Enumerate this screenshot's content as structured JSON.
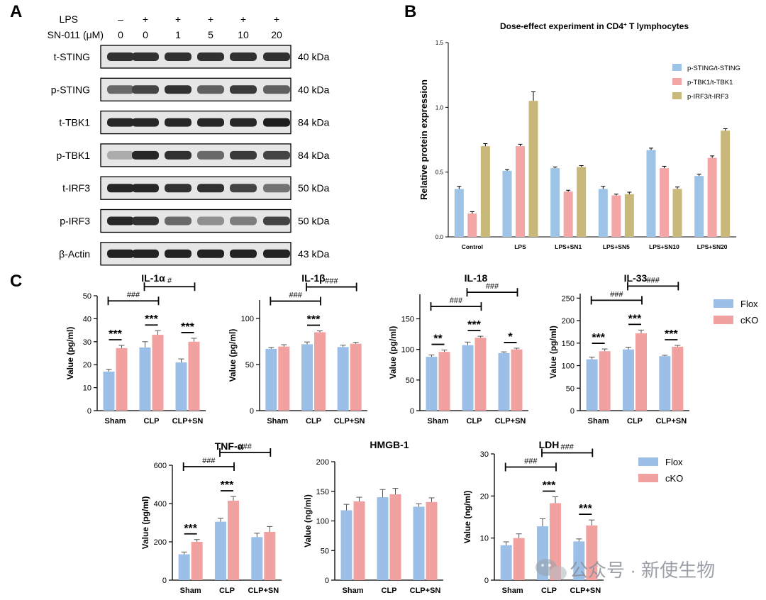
{
  "panel_letters": [
    "A",
    "B",
    "C"
  ],
  "colors": {
    "flox": "#9bbfe6",
    "cko": "#f2a1a1",
    "irf3": "#c8b97a",
    "sting": "#9dc3e6",
    "tbk1": "#f4a6a6",
    "line": "#000000"
  },
  "western": {
    "lps_label": "LPS",
    "sn_label": "SN-011 (μM)",
    "lps_marks": [
      "–",
      "+",
      "+",
      "+",
      "+",
      "+"
    ],
    "sn_doses": [
      "0",
      "0",
      "1",
      "5",
      "10",
      "20"
    ],
    "blots": [
      {
        "name": "t-STING",
        "kda": "40 kDa",
        "intensity": [
          0.85,
          0.85,
          0.85,
          0.85,
          0.85,
          0.85
        ]
      },
      {
        "name": "p-STING",
        "kda": "40 kDa",
        "intensity": [
          0.55,
          0.75,
          0.85,
          0.6,
          0.8,
          0.6
        ]
      },
      {
        "name": "t-TBK1",
        "kda": "84 kDa",
        "intensity": [
          0.9,
          0.9,
          0.9,
          0.9,
          0.9,
          0.95
        ]
      },
      {
        "name": "p-TBK1",
        "kda": "84 kDa",
        "intensity": [
          0.2,
          0.9,
          0.85,
          0.55,
          0.8,
          0.75
        ]
      },
      {
        "name": "t-IRF3",
        "kda": "50 kDa",
        "intensity": [
          0.9,
          0.9,
          0.85,
          0.85,
          0.75,
          0.5
        ]
      },
      {
        "name": "p-IRF3",
        "kda": "50 kDa",
        "intensity": [
          0.9,
          0.85,
          0.55,
          0.35,
          0.45,
          0.75
        ]
      },
      {
        "name": "β-Actin",
        "kda": "43 kDa",
        "intensity": [
          0.92,
          0.92,
          0.92,
          0.92,
          0.92,
          0.92
        ]
      }
    ]
  },
  "chart_data": [
    {
      "panel": "B",
      "type": "bar",
      "title": "Dose-effect experiment in CD4⁺ T lymphocytes",
      "title_main": "Dose-effect experiment in CD4",
      "title_sup": "+",
      "title_tail": " T lymphocytes",
      "ylabel": "Relative protein expression",
      "xlabel": "",
      "ylim": [
        0,
        1.5
      ],
      "yticks": [
        "0.0",
        "0.5",
        "1.0",
        "1.5"
      ],
      "ytick_values": [
        0,
        0.5,
        1.0,
        1.5
      ],
      "categories": [
        "Control",
        "LPS",
        "LPS+SN1",
        "LPS+SN5",
        "LPS+SN10",
        "LPS+SN20"
      ],
      "legend_position": "top-right",
      "series": [
        {
          "name": "p-STING/t-STING",
          "color": "#9dc3e6",
          "values": [
            0.37,
            0.51,
            0.53,
            0.37,
            0.67,
            0.47
          ],
          "errors": [
            0.02,
            0.01,
            0.01,
            0.02,
            0.015,
            0.015
          ]
        },
        {
          "name": "p-TBK1/t-TBK1",
          "color": "#f4a6a6",
          "values": [
            0.18,
            0.7,
            0.35,
            0.32,
            0.53,
            0.61
          ],
          "errors": [
            0.015,
            0.015,
            0.01,
            0.01,
            0.015,
            0.015
          ]
        },
        {
          "name": "p-IRF3/t-IRF3",
          "color": "#c8b97a",
          "values": [
            0.7,
            1.05,
            0.54,
            0.33,
            0.37,
            0.82
          ],
          "errors": [
            0.02,
            0.07,
            0.01,
            0.015,
            0.015,
            0.015
          ]
        }
      ]
    },
    {
      "panel": "C",
      "id": "il1a",
      "type": "bar",
      "title": "IL-1α",
      "ylabel": "Value (pg/ml)",
      "ylim": [
        0,
        50
      ],
      "yticks": [
        "0",
        "10",
        "20",
        "30",
        "40",
        "50"
      ],
      "ytick_values": [
        0,
        10,
        20,
        30,
        40,
        50
      ],
      "categories": [
        "Sham",
        "CLP",
        "CLP+SN"
      ],
      "series": [
        {
          "name": "Flox",
          "values": [
            17,
            27.5,
            21
          ],
          "errors": [
            1,
            2.5,
            1.5
          ]
        },
        {
          "name": "cKO",
          "values": [
            27.2,
            33,
            30
          ],
          "errors": [
            1.2,
            1.8,
            1.5
          ]
        }
      ],
      "stars": [
        "***",
        "***",
        "***"
      ],
      "hash_brackets": [
        {
          "from": 0,
          "to": 1,
          "label": "###"
        },
        {
          "from": 1,
          "to": 2,
          "label": "#"
        }
      ]
    },
    {
      "panel": "C",
      "id": "il1b",
      "type": "bar",
      "title": "IL-1β",
      "ylabel": "Value (pg/ml)",
      "ylim": [
        0,
        120
      ],
      "yticks": [
        "0",
        "50",
        "100"
      ],
      "ytick_values": [
        0,
        50,
        100
      ],
      "categories": [
        "Sham",
        "CLP",
        "CLP+SN"
      ],
      "series": [
        {
          "name": "Flox",
          "values": [
            67,
            72,
            69
          ],
          "errors": [
            1.5,
            2.5,
            2
          ]
        },
        {
          "name": "cKO",
          "values": [
            69.5,
            85,
            72.5
          ],
          "errors": [
            2,
            1.5,
            1.5
          ]
        }
      ],
      "stars": [
        "",
        "***",
        ""
      ],
      "hash_brackets": [
        {
          "from": 0,
          "to": 1,
          "label": "###"
        },
        {
          "from": 1,
          "to": 2,
          "label": "###"
        }
      ]
    },
    {
      "panel": "C",
      "id": "il18",
      "type": "bar",
      "title": "IL-18",
      "ylabel": "Value (pg/ml)",
      "ylim": [
        0,
        190
      ],
      "yticks": [
        "0",
        "50",
        "100",
        "150"
      ],
      "ytick_values": [
        0,
        50,
        100,
        150
      ],
      "categories": [
        "Sham",
        "CLP",
        "CLP+SN"
      ],
      "series": [
        {
          "name": "Flox",
          "values": [
            88,
            107,
            94
          ],
          "errors": [
            3,
            5,
            2
          ]
        },
        {
          "name": "cKO",
          "values": [
            96,
            119,
            100
          ],
          "errors": [
            3,
            2.5,
            2
          ]
        }
      ],
      "stars": [
        "**",
        "***",
        "*"
      ],
      "hash_brackets": [
        {
          "from": 0,
          "to": 1,
          "label": "###"
        },
        {
          "from": 1,
          "to": 2,
          "label": "###"
        }
      ]
    },
    {
      "panel": "C",
      "id": "il33",
      "type": "bar",
      "title": "IL-33",
      "ylabel": "Value (pg/ml)",
      "ylim": [
        0,
        260
      ],
      "yticks": [
        "0",
        "50",
        "100",
        "150",
        "200",
        "250"
      ],
      "ytick_values": [
        0,
        50,
        100,
        150,
        200,
        250
      ],
      "categories": [
        "Sham",
        "CLP",
        "CLP+SN"
      ],
      "series": [
        {
          "name": "Flox",
          "values": [
            114,
            136,
            121
          ],
          "errors": [
            5,
            5,
            2
          ]
        },
        {
          "name": "cKO",
          "values": [
            132,
            172,
            142
          ],
          "errors": [
            5,
            7,
            3
          ]
        }
      ],
      "stars": [
        "***",
        "***",
        "***"
      ],
      "hash_brackets": [
        {
          "from": 0,
          "to": 1,
          "label": "###"
        },
        {
          "from": 1,
          "to": 2,
          "label": "###"
        }
      ]
    },
    {
      "panel": "C",
      "id": "tnfa",
      "type": "bar",
      "title": "TNF-α",
      "ylabel": "Value (pg/ml)",
      "ylim": [
        0,
        600
      ],
      "yticks": [
        "0",
        "200",
        "400",
        "600"
      ],
      "ytick_values": [
        0,
        200,
        400,
        600
      ],
      "categories": [
        "Sham",
        "CLP",
        "CLP+SN"
      ],
      "series": [
        {
          "name": "Flox",
          "values": [
            135,
            305,
            225
          ],
          "errors": [
            12,
            18,
            20
          ]
        },
        {
          "name": "cKO",
          "values": [
            200,
            415,
            252
          ],
          "errors": [
            12,
            22,
            28
          ]
        }
      ],
      "stars": [
        "***",
        "***",
        ""
      ],
      "hash_brackets": [
        {
          "from": 0,
          "to": 1,
          "label": "###"
        },
        {
          "from": 1,
          "to": 2,
          "label": "###"
        }
      ]
    },
    {
      "panel": "C",
      "id": "hmgb1",
      "type": "bar",
      "title": "HMGB-1",
      "ylabel": "Value (ng/ml)",
      "ylim": [
        0,
        200
      ],
      "yticks": [
        "0",
        "50",
        "100",
        "150",
        "200"
      ],
      "ytick_values": [
        0,
        50,
        100,
        150,
        200
      ],
      "categories": [
        "Sham",
        "CLP",
        "CLP+SN"
      ],
      "series": [
        {
          "name": "Flox",
          "values": [
            118,
            140,
            124
          ],
          "errors": [
            10,
            13,
            5
          ]
        },
        {
          "name": "cKO",
          "values": [
            133,
            145,
            132
          ],
          "errors": [
            7,
            10,
            7
          ]
        }
      ],
      "stars": [
        "",
        "",
        ""
      ],
      "hash_brackets": []
    },
    {
      "panel": "C",
      "id": "ldh",
      "type": "bar",
      "title": "LDH",
      "ylabel": "Value (ng/ml)",
      "ylim": [
        0,
        30
      ],
      "yticks": [
        "0",
        "10",
        "20",
        "30"
      ],
      "ytick_values": [
        0,
        10,
        20,
        30
      ],
      "categories": [
        "Sham",
        "CLP",
        "CLP+SN"
      ],
      "series": [
        {
          "name": "Flox",
          "values": [
            8.3,
            12.8,
            9.2
          ],
          "errors": [
            0.8,
            1.8,
            0.6
          ]
        },
        {
          "name": "cKO",
          "values": [
            10,
            18.3,
            13
          ],
          "errors": [
            1,
            1.5,
            1.3
          ]
        }
      ],
      "stars": [
        "",
        "***",
        "***"
      ],
      "hash_brackets": [
        {
          "from": 0,
          "to": 1,
          "label": "###"
        },
        {
          "from": 1,
          "to": 2,
          "label": "###"
        }
      ]
    }
  ],
  "legend_c": [
    "Flox",
    "cKO"
  ],
  "watermark": "公众号 · 新使生物"
}
